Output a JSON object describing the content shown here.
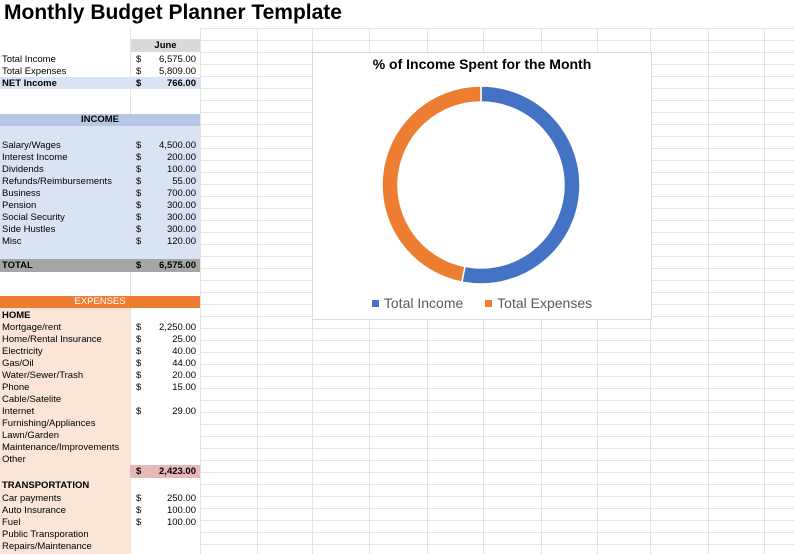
{
  "title": "Monthly Budget Planner Template",
  "month": "June",
  "summary": [
    {
      "label": "Total Income",
      "dollar": "$",
      "amount": "6,575.00",
      "bold": false
    },
    {
      "label": "Total Expenses",
      "dollar": "$",
      "amount": "5,809.00",
      "bold": false
    },
    {
      "label": "NET Income",
      "dollar": "$",
      "amount": "766.00",
      "bold": true
    }
  ],
  "income": {
    "header": "INCOME",
    "items": [
      {
        "label": "Salary/Wages",
        "dollar": "$",
        "amount": "4,500.00"
      },
      {
        "label": "Interest Income",
        "dollar": "$",
        "amount": "200.00"
      },
      {
        "label": "Dividends",
        "dollar": "$",
        "amount": "100.00"
      },
      {
        "label": "Refunds/Reimbursements",
        "dollar": "$",
        "amount": "55.00"
      },
      {
        "label": "Business",
        "dollar": "$",
        "amount": "700.00"
      },
      {
        "label": "Pension",
        "dollar": "$",
        "amount": "300.00"
      },
      {
        "label": "Social Security",
        "dollar": "$",
        "amount": "300.00"
      },
      {
        "label": "Side Hustles",
        "dollar": "$",
        "amount": "300.00"
      },
      {
        "label": "Misc",
        "dollar": "$",
        "amount": "120.00"
      }
    ],
    "total": {
      "label": "TOTAL",
      "dollar": "$",
      "amount": "6,575.00"
    }
  },
  "expenses": {
    "header": "EXPENSES",
    "home": {
      "header": "HOME",
      "items": [
        {
          "label": "Mortgage/rent",
          "dollar": "$",
          "amount": "2,250.00"
        },
        {
          "label": "Home/Rental Insurance",
          "dollar": "$",
          "amount": "25.00"
        },
        {
          "label": "Electricity",
          "dollar": "$",
          "amount": "40.00"
        },
        {
          "label": "Gas/Oil",
          "dollar": "$",
          "amount": "44.00"
        },
        {
          "label": "Water/Sewer/Trash",
          "dollar": "$",
          "amount": "20.00"
        },
        {
          "label": "Phone",
          "dollar": "$",
          "amount": "15.00"
        },
        {
          "label": "Cable/Satelite",
          "dollar": "",
          "amount": ""
        },
        {
          "label": "Internet",
          "dollar": "$",
          "amount": "29.00"
        },
        {
          "label": "Furnishing/Appliances",
          "dollar": "",
          "amount": ""
        },
        {
          "label": "Lawn/Garden",
          "dollar": "",
          "amount": ""
        },
        {
          "label": "Maintenance/Improvements",
          "dollar": "",
          "amount": ""
        },
        {
          "label": "Other",
          "dollar": "",
          "amount": ""
        }
      ],
      "subtotal": {
        "dollar": "$",
        "amount": "2,423.00"
      }
    },
    "transportation": {
      "header": "TRANSPORTATION",
      "items": [
        {
          "label": "Car payments",
          "dollar": "$",
          "amount": "250.00"
        },
        {
          "label": "Auto Insurance",
          "dollar": "$",
          "amount": "100.00"
        },
        {
          "label": "Fuel",
          "dollar": "$",
          "amount": "100.00"
        },
        {
          "label": "Public Transporation",
          "dollar": "",
          "amount": ""
        },
        {
          "label": "Repairs/Maintenance",
          "dollar": "",
          "amount": ""
        }
      ]
    }
  },
  "colors": {
    "income_blue": "#4472c4",
    "expense_orange": "#ed7d31",
    "income_band": "#dae3f3",
    "income_header": "#b4c7e7",
    "expense_band": "#fbe5d6",
    "expense_header": "#ed7d31",
    "subtotal_pink": "#e6b9b8",
    "total_gray": "#a6a6a6",
    "month_header": "#d9d9d9"
  },
  "chart_data": {
    "type": "pie",
    "title": "% of Income Spent for the Month",
    "donut": true,
    "categories": [
      "Total Income",
      "Total Expenses"
    ],
    "values": [
      6575,
      5809
    ],
    "colors": [
      "#4472c4",
      "#ed7d31"
    ],
    "legend": "bottom"
  }
}
